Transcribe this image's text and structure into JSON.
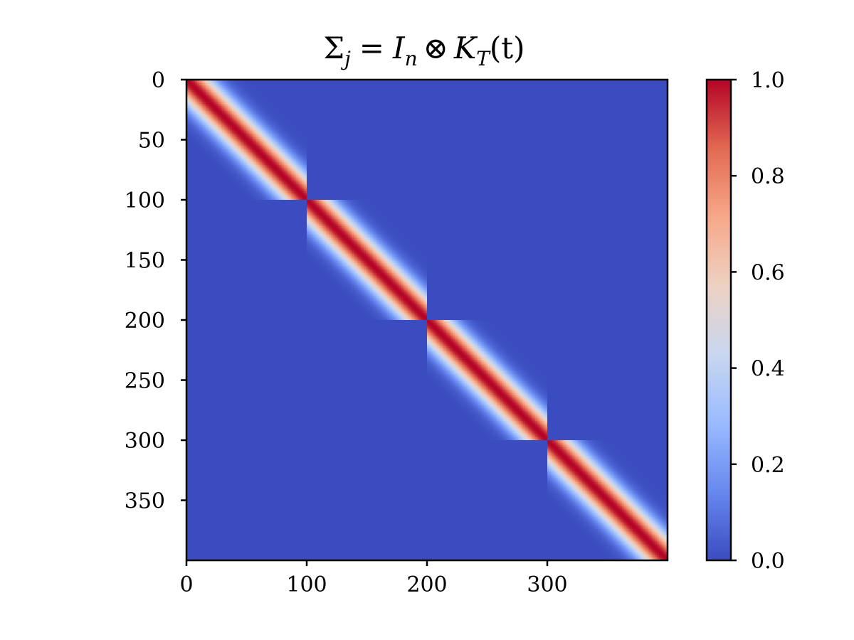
{
  "chart_data": {
    "type": "heatmap",
    "title": "Σ_j = I_n ⊗ K_T(t)",
    "title_parts": {
      "sigma": "Σ",
      "sigma_sub": "j",
      "eq": "=",
      "I": "I",
      "I_sub": "n",
      "otimes": "⊗",
      "K": "K",
      "K_sub": "T",
      "t_expr": "(t)"
    },
    "matrix": {
      "size": 400,
      "block_size": 100,
      "n_blocks": 4,
      "structure": "block-diagonal",
      "kernel": "squared-exponential",
      "lengthscale": 14,
      "diagonal_value": 1.0,
      "off_block_value": 0.0
    },
    "x_axis": {
      "range": [
        0,
        400
      ],
      "ticks": [
        0,
        100,
        200,
        300
      ],
      "tick_labels": [
        "0",
        "100",
        "200",
        "300"
      ]
    },
    "y_axis": {
      "range": [
        0,
        400
      ],
      "inverted": true,
      "ticks": [
        0,
        50,
        100,
        150,
        200,
        250,
        300,
        350
      ],
      "tick_labels": [
        "0",
        "50",
        "100",
        "150",
        "200",
        "250",
        "300",
        "350"
      ]
    },
    "colorbar": {
      "colormap": "coolwarm",
      "range": [
        0.0,
        1.0
      ],
      "ticks": [
        0.0,
        0.2,
        0.4,
        0.6,
        0.8,
        1.0
      ],
      "tick_labels": [
        "0.0",
        "0.2",
        "0.4",
        "0.6",
        "0.8",
        "1.0"
      ],
      "stops": [
        "#3b4cc0",
        "#6788ee",
        "#9abbff",
        "#c9d7f0",
        "#edd1c2",
        "#f7a889",
        "#e26952",
        "#b40426"
      ]
    },
    "grid": false,
    "legend": "none"
  }
}
